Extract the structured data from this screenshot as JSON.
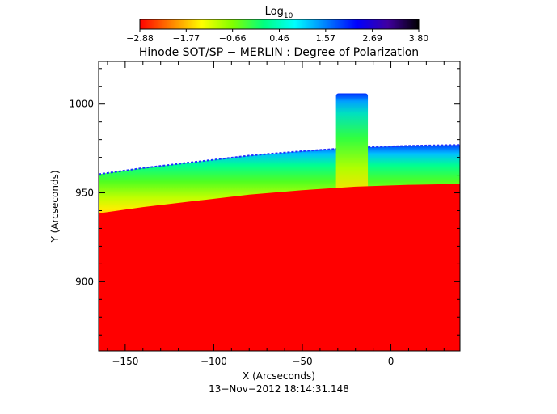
{
  "chart_data": {
    "type": "heatmap",
    "title": "Hinode SOT/SP − MERLIN : Degree of Polarization",
    "colorbar": {
      "label_main": "Log",
      "label_sub": "10",
      "ticks": [
        "−2.88",
        "−1.77",
        "−0.66",
        "0.46",
        "1.57",
        "2.69",
        "3.80"
      ],
      "tick_values": [
        -2.88,
        -1.77,
        -0.66,
        0.46,
        1.57,
        2.69,
        3.8
      ],
      "range": [
        -2.88,
        3.8
      ],
      "colormap": [
        "#ff0000",
        "#ff8000",
        "#ffff00",
        "#80ff00",
        "#00ff80",
        "#00ffff",
        "#0080ff",
        "#0000ff",
        "#4000a0",
        "#000000"
      ]
    },
    "xlabel": "X (Arcseconds)",
    "ylabel": "Y (Arcseconds)",
    "xlim": [
      -165,
      39
    ],
    "ylim": [
      861,
      1024
    ],
    "x_ticks": [
      -150,
      -100,
      -50,
      0
    ],
    "x_tick_labels": [
      "−150",
      "−100",
      "−50",
      "0"
    ],
    "y_ticks": [
      900,
      950,
      1000
    ],
    "y_tick_labels": [
      "900",
      "950",
      "1000"
    ],
    "limb_profile": {
      "x": [
        -165,
        -140,
        -110,
        -80,
        -50,
        -20,
        10,
        39
      ],
      "y": [
        938.5,
        942,
        945.5,
        949,
        951.5,
        953.5,
        954.5,
        955
      ]
    },
    "prominence": {
      "x_range": [
        -31,
        -13
      ],
      "y_top": 1006
    },
    "annotation": "13−Nov−2012 18:14:31.148"
  }
}
